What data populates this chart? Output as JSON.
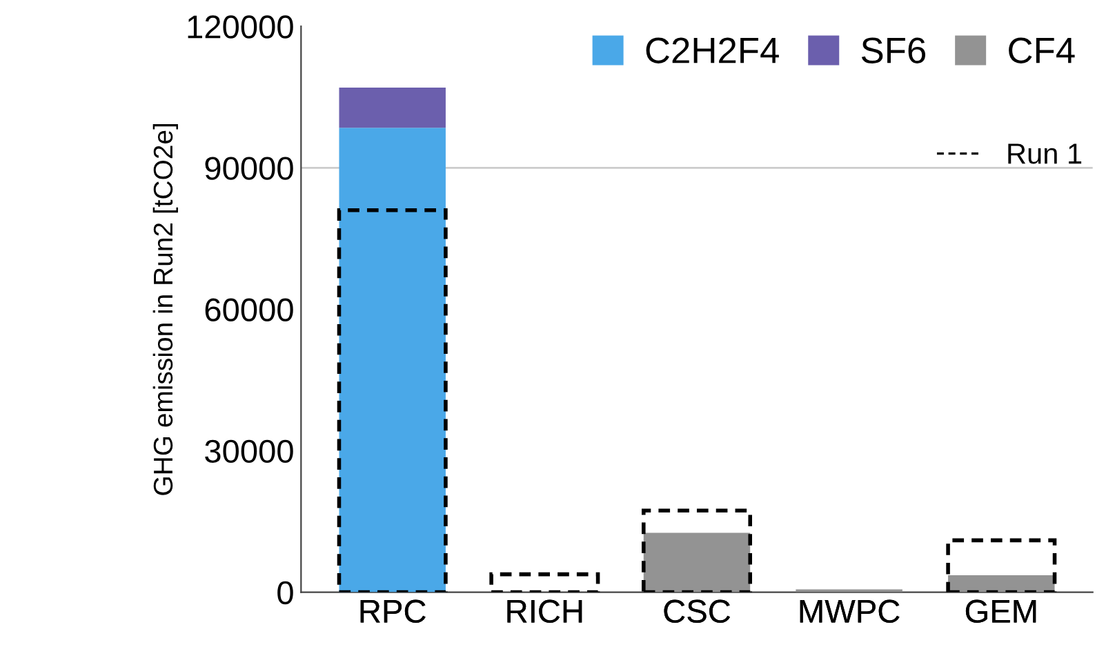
{
  "chart_data": [
    {
      "type": "bar",
      "stacked": true,
      "ylabel": "GHG emission in Run2 [tCO2e]",
      "categories": [
        "RPC",
        "RICH",
        "CSC",
        "MWPC",
        "GEM"
      ],
      "series": [
        {
          "name": "C2H2F4",
          "color": "#4aa8e8",
          "values": [
            98500,
            null,
            null,
            null,
            null
          ]
        },
        {
          "name": "SF6",
          "color": "#6b5fad",
          "values": [
            8500,
            null,
            null,
            null,
            null
          ]
        },
        {
          "name": "CF4",
          "color": "#939393",
          "values": [
            null,
            null,
            12600,
            600,
            3600
          ]
        }
      ],
      "ylim": [
        0,
        120000
      ],
      "yticks": [
        0,
        30000,
        60000,
        90000,
        120000
      ],
      "ref_lines": [
        {
          "axis": "y",
          "value": 90000,
          "color": "#cccccc"
        }
      ],
      "legend": "top right"
    },
    {
      "type": "bar",
      "categories": [
        "RPC",
        "RICH",
        "CSC",
        "MWPC",
        "GEM"
      ],
      "series": [
        {
          "name": "Run 1",
          "color": "#000000",
          "line_style": "dashed",
          "values": [
            81000,
            3800,
            17300,
            null,
            11000
          ]
        }
      ],
      "ylim": [
        0,
        120000
      ],
      "tick_labels": "x",
      "legend": "top right"
    }
  ]
}
